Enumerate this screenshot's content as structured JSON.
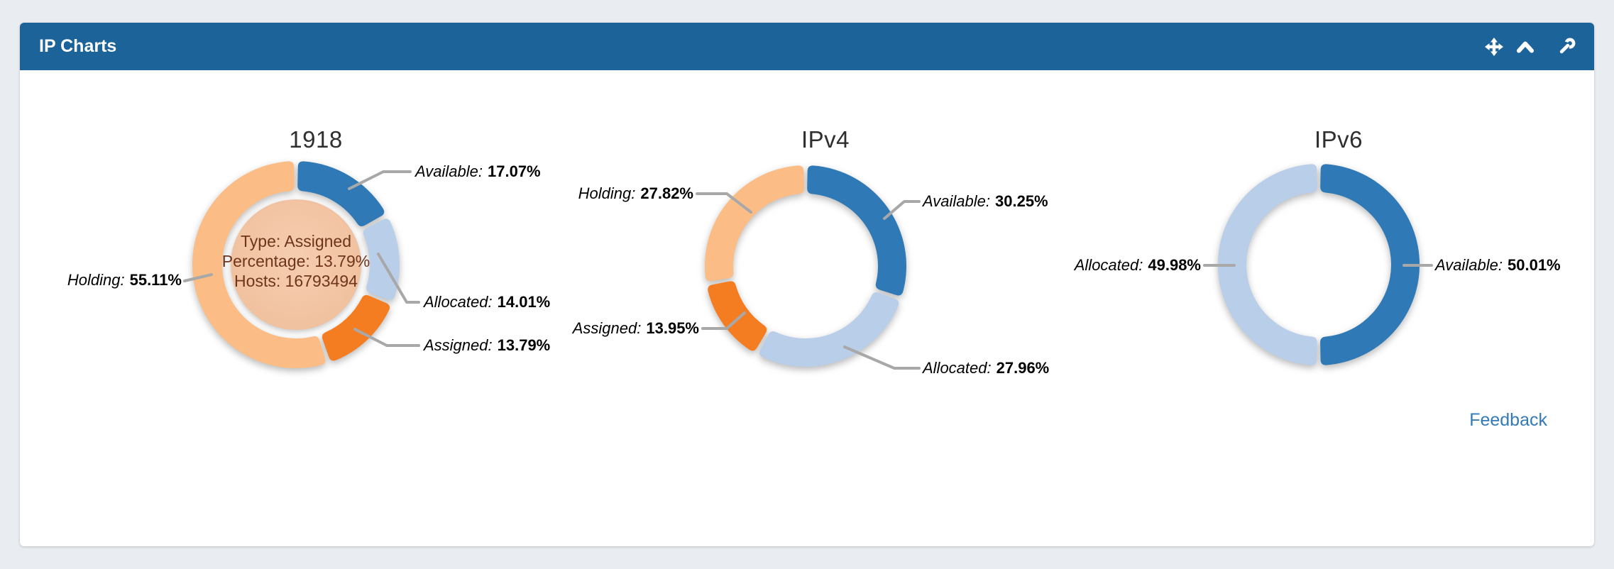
{
  "panel": {
    "title": "IP Charts",
    "icons": [
      "move-icon",
      "collapse-up-icon",
      "wrench-icon"
    ],
    "feedback_label": "Feedback"
  },
  "colors": {
    "header_blue": "#1c6399",
    "page_background": "#e9edf1",
    "link_blue": "#337ab7",
    "leader_gray": "#a8a8a8",
    "available_blue": "#2e79b6",
    "allocated_lightblue": "#b8cee9",
    "assigned_orange": "#f57d21",
    "holding_lightorange": "#fbbd85",
    "center_disc_peach": "#f2c4a2",
    "center_text_brown": "#6e351c"
  },
  "chart_data": [
    {
      "type": "pie",
      "variant": "donut",
      "title": "1918",
      "slices": [
        {
          "label": "Available:",
          "value": 17.07,
          "value_text": "17.07%",
          "color": "#2e79b6"
        },
        {
          "label": "Allocated:",
          "value": 14.01,
          "value_text": "14.01%",
          "color": "#b8cee9"
        },
        {
          "label": "Assigned:",
          "value": 13.79,
          "value_text": "13.79%",
          "color": "#f57d21"
        },
        {
          "label": "Holding:",
          "value": 55.11,
          "value_text": "55.11%",
          "color": "#fbbd85"
        }
      ],
      "center_tooltip": {
        "lines": [
          "Type: Assigned",
          "Percentage: 13.79%",
          "Hosts: 16793494"
        ]
      }
    },
    {
      "type": "pie",
      "variant": "donut",
      "title": "IPv4",
      "slices": [
        {
          "label": "Available:",
          "value": 30.25,
          "value_text": "30.25%",
          "color": "#2e79b6"
        },
        {
          "label": "Allocated:",
          "value": 27.96,
          "value_text": "27.96%",
          "color": "#b8cee9"
        },
        {
          "label": "Assigned:",
          "value": 13.95,
          "value_text": "13.95%",
          "color": "#f57d21"
        },
        {
          "label": "Holding:",
          "value": 27.82,
          "value_text": "27.82%",
          "color": "#fbbd85"
        }
      ]
    },
    {
      "type": "pie",
      "variant": "donut",
      "title": "IPv6",
      "slices": [
        {
          "label": "Available:",
          "value": 50.01,
          "value_text": "50.01%",
          "color": "#2e79b6"
        },
        {
          "label": "Allocated:",
          "value": 49.98,
          "value_text": "49.98%",
          "color": "#b8cee9"
        }
      ]
    }
  ]
}
